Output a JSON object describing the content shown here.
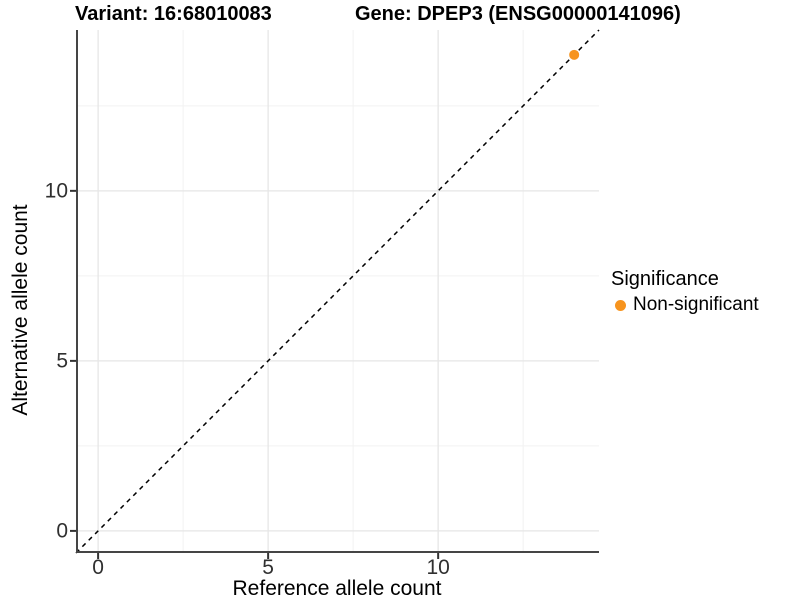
{
  "figure": {
    "title_variant": "Variant: 16:68010083",
    "title_gene": "Gene: DPEP3 (ENSG00000141096)"
  },
  "chart_data": {
    "type": "scatter",
    "title": "Variant: 16:68010083   Gene: DPEP3 (ENSG00000141096)",
    "xlabel": "Reference allele count",
    "ylabel": "Alternative allele count",
    "xlim": [
      -0.65,
      14.73
    ],
    "ylim": [
      -0.65,
      14.73
    ],
    "x_ticks": [
      0,
      5,
      10
    ],
    "y_ticks": [
      0,
      5,
      10
    ],
    "major_gridlines": [
      0,
      5,
      10
    ],
    "minor_gridlines": [
      2.5,
      7.5,
      12.5
    ],
    "grid": true,
    "identity_line": {
      "style": "dashed",
      "slope": 1,
      "intercept": 0,
      "color": "#000000"
    },
    "series": [
      {
        "name": "Non-significant",
        "color": "#F7941E",
        "points": [
          {
            "x": 14,
            "y": 14
          }
        ]
      }
    ],
    "legend": {
      "title": "Significance",
      "position": "right",
      "items": [
        {
          "label": "Non-significant",
          "color": "#F7941E"
        }
      ]
    },
    "colors": {
      "background": "#ffffff",
      "axis_line": "#454545",
      "tick_mark": "#333333",
      "tick_label": "#303030",
      "grid_major": "#e6e6e6",
      "grid_minor": "#f2f2f2"
    }
  }
}
